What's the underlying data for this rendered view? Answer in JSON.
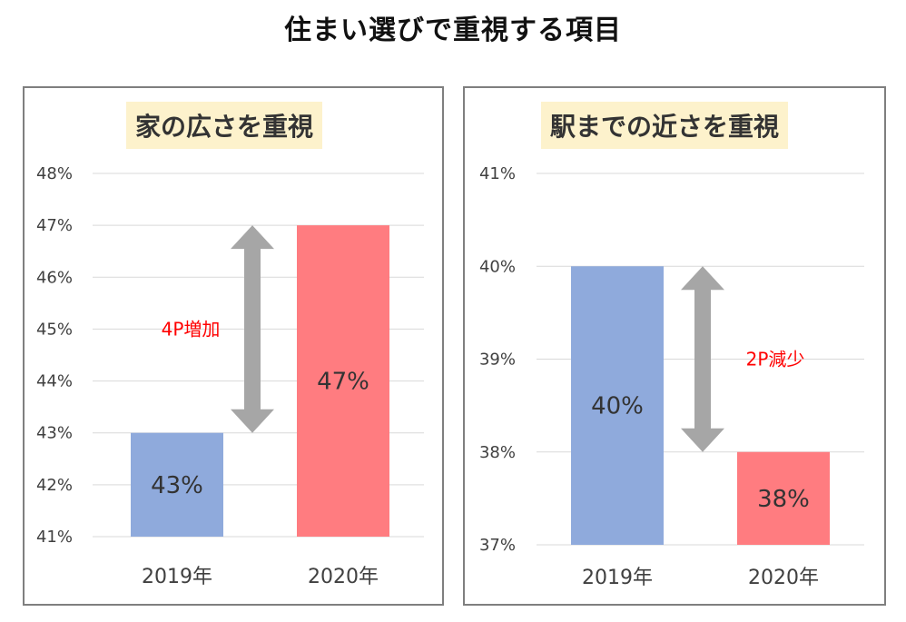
{
  "title": "住まい選びで重視する項目",
  "colors": {
    "bar_2019": "#8faadc",
    "bar_2020": "#ff7c80",
    "arrow": "#a6a6a6",
    "grid": "#d9d9d9",
    "annotation": "#ff0000",
    "title_bg": "#fdf2cc"
  },
  "chart_data": [
    {
      "type": "bar",
      "title": "家の広さを重視",
      "categories": [
        "2019年",
        "2020年"
      ],
      "values": [
        43,
        47
      ],
      "data_labels": [
        "43%",
        "47%"
      ],
      "ylim": [
        41,
        48
      ],
      "y_ticks": [
        "41%",
        "42%",
        "43%",
        "44%",
        "45%",
        "46%",
        "47%",
        "48%"
      ],
      "grid": true,
      "annotation": "4P増加"
    },
    {
      "type": "bar",
      "title": "駅までの近さを重視",
      "categories": [
        "2019年",
        "2020年"
      ],
      "values": [
        40,
        38
      ],
      "data_labels": [
        "40%",
        "38%"
      ],
      "ylim": [
        37,
        41
      ],
      "y_ticks": [
        "37%",
        "38%",
        "39%",
        "40%",
        "41%"
      ],
      "grid": true,
      "annotation": "2P減少"
    }
  ]
}
